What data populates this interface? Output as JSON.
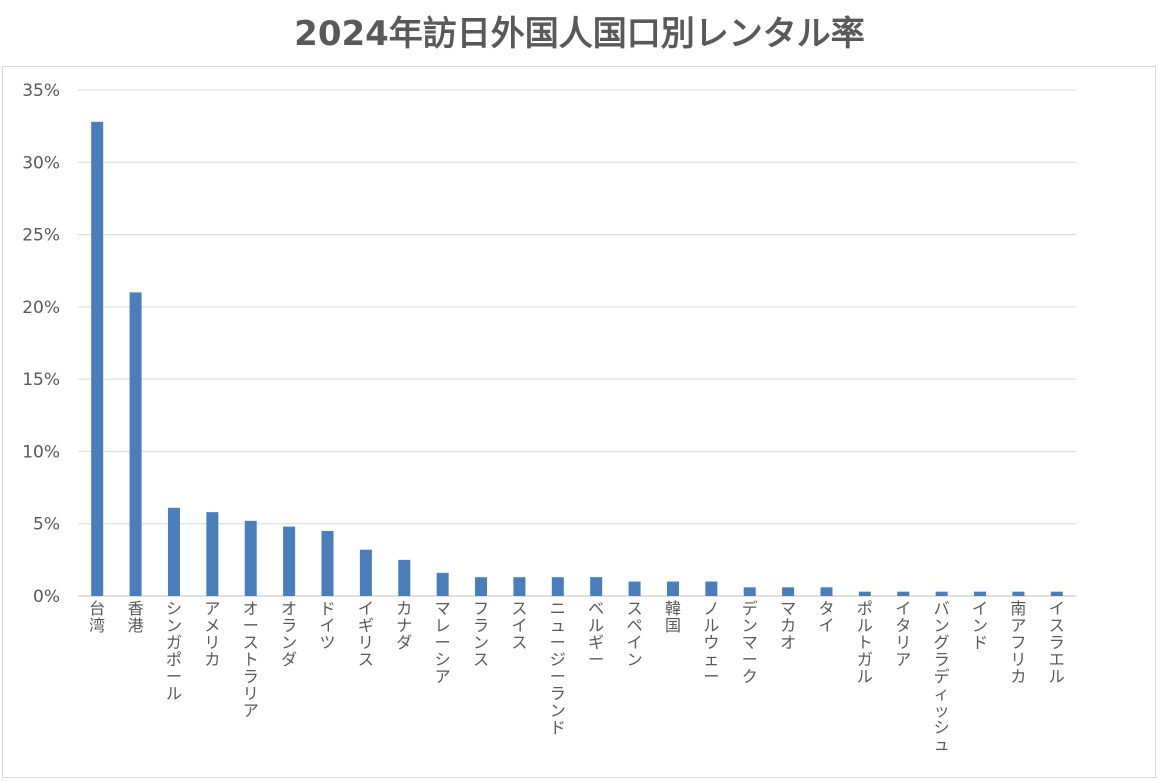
{
  "chart_data": {
    "type": "bar",
    "title": "2024年訪日外国人国口別レンタル率",
    "xlabel": "",
    "ylabel": "",
    "ylim": [
      0,
      35
    ],
    "yticks": [
      "0%",
      "5%",
      "10%",
      "15%",
      "20%",
      "25%",
      "30%",
      "35%"
    ],
    "ytick_values": [
      0,
      5,
      10,
      15,
      20,
      25,
      30,
      35
    ],
    "grid": true,
    "bar_color": "#4a7ebb",
    "categories": [
      "台湾",
      "香港",
      "シンガポール",
      "アメリカ",
      "オーストラリア",
      "オランダ",
      "ドイツ",
      "イギリス",
      "カナダ",
      "マレーシア",
      "フランス",
      "スイス",
      "ニュージーランド",
      "ベルギー",
      "スペイン",
      "韓国",
      "ノルウェー",
      "デンマーク",
      "マカオ",
      "タイ",
      "ポルトガル",
      "イタリア",
      "バングラディッシュ",
      "インド",
      "南アフリカ",
      "イスラエル"
    ],
    "values": [
      32.8,
      21.0,
      6.1,
      5.8,
      5.2,
      4.8,
      4.5,
      3.2,
      2.5,
      1.6,
      1.3,
      1.3,
      1.3,
      1.3,
      1.0,
      1.0,
      1.0,
      0.6,
      0.6,
      0.6,
      0.3,
      0.3,
      0.3,
      0.3,
      0.3,
      0.3
    ]
  }
}
